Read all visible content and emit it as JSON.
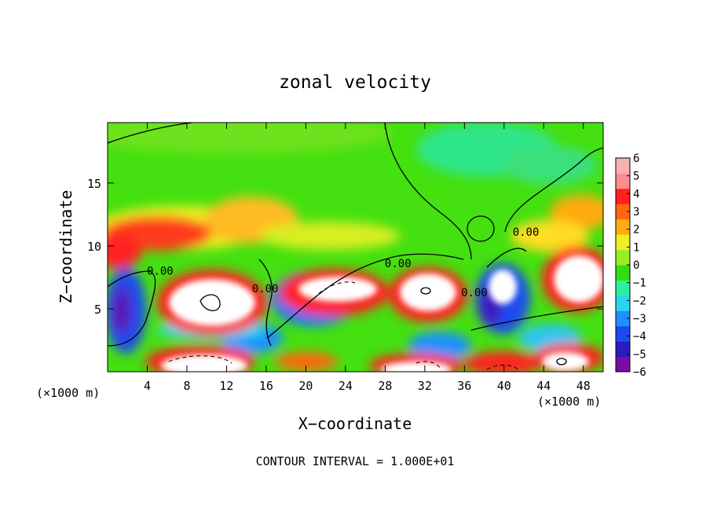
{
  "chart_data": {
    "type": "heatmap",
    "title": "zonal velocity",
    "xlabel": "X−coordinate",
    "ylabel": "Z−coordinate",
    "x_unit_left": "(×1000 m)",
    "x_unit_right": "(×1000 m)",
    "xlim": [
      0,
      50
    ],
    "ylim": [
      0,
      19.8
    ],
    "x_ticks": [
      4,
      8,
      12,
      16,
      20,
      24,
      28,
      32,
      36,
      40,
      44,
      48
    ],
    "x_tick_labels": [
      "4",
      "8",
      "12",
      "16",
      "20",
      "24",
      "28",
      "32",
      "36",
      "40",
      "44",
      "48"
    ],
    "y_ticks": [
      5,
      10,
      15
    ],
    "y_tick_labels": [
      "5",
      "10",
      "15"
    ],
    "colorbar": {
      "min": -6,
      "max": 6,
      "levels": [
        -6,
        -5,
        -4,
        -3,
        -2,
        -1,
        0,
        1,
        2,
        3,
        4,
        5,
        6
      ],
      "labels": [
        "−6",
        "−5",
        "−4",
        "−3",
        "−2",
        "−1",
        "0",
        "1",
        "2",
        "3",
        "4",
        "5",
        "6"
      ],
      "colors": [
        "#7a0ca8",
        "#2a1cc0",
        "#1b4cf0",
        "#1e90ff",
        "#29d6f0",
        "#2af0a0",
        "#33dd11",
        "#99ee22",
        "#eeee22",
        "#ffaa11",
        "#ff6611",
        "#ff2020",
        "#ff8c8c",
        "#f6b0b0"
      ]
    },
    "contour_labels": [
      {
        "x": 5.3,
        "z": 7.7,
        "text": "0.00"
      },
      {
        "x": 29.3,
        "z": 8.3,
        "text": "0.00"
      },
      {
        "x": 42.2,
        "z": 10.8,
        "text": "0.00"
      },
      {
        "x": 37.0,
        "z": 6.0,
        "text": "0.00"
      },
      {
        "x": 15.9,
        "z": 6.3,
        "text": "0.00"
      }
    ],
    "footer": "CONTOUR INTERVAL = 1.000E+01"
  }
}
